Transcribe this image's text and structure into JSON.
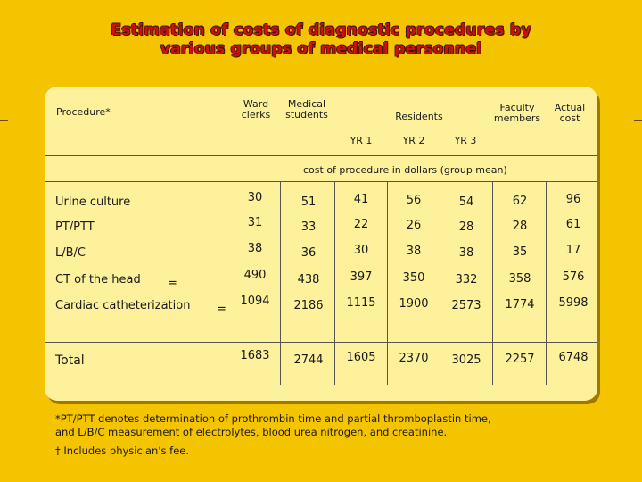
{
  "title_line1": "Estimation of costs of diagnostic procedures by",
  "title_line2": "various groups of medical personnel",
  "header": {
    "procedure": "Procedure*",
    "ward_clerks": [
      "Ward",
      "clerks"
    ],
    "medical_students": [
      "Medical",
      "students"
    ],
    "residents": "Residents",
    "faculty": [
      "Faculty",
      "members"
    ],
    "actual_cost": [
      "Actual",
      "cost"
    ],
    "yr1": "YR 1",
    "yr2": "YR 2",
    "yr3": "YR 3",
    "units": "cost of procedure in dollars (group mean)"
  },
  "rows": [
    {
      "label": "Urine culture",
      "dagger": "",
      "values": [
        "30",
        "51",
        "41",
        "56",
        "54",
        "62",
        "96"
      ]
    },
    {
      "label": "PT/PTT",
      "dagger": "",
      "values": [
        "31",
        "33",
        "22",
        "26",
        "28",
        "28",
        "61"
      ]
    },
    {
      "label": "L/B/C",
      "dagger": "",
      "values": [
        "38",
        "36",
        "30",
        "38",
        "38",
        "35",
        "17"
      ]
    },
    {
      "label": "CT of the head",
      "dagger": "=",
      "values": [
        "490",
        "438",
        "397",
        "350",
        "332",
        "358",
        "576"
      ]
    },
    {
      "label": "Cardiac catheterization",
      "dagger": "=",
      "values": [
        "1094",
        "2186",
        "1115",
        "1900",
        "2573",
        "1774",
        "5998"
      ]
    }
  ],
  "total": {
    "label": "Total",
    "values": [
      "1683",
      "2744",
      "1605",
      "2370",
      "3025",
      "2257",
      "6748"
    ]
  },
  "footnotes": [
    "*PT/PTT denotes determination of prothrombin time and partial thromboplastin time,",
    "and L/B/C measurement of electrolytes, blood urea nitrogen, and creatinine.",
    "† Includes physician's fee."
  ]
}
